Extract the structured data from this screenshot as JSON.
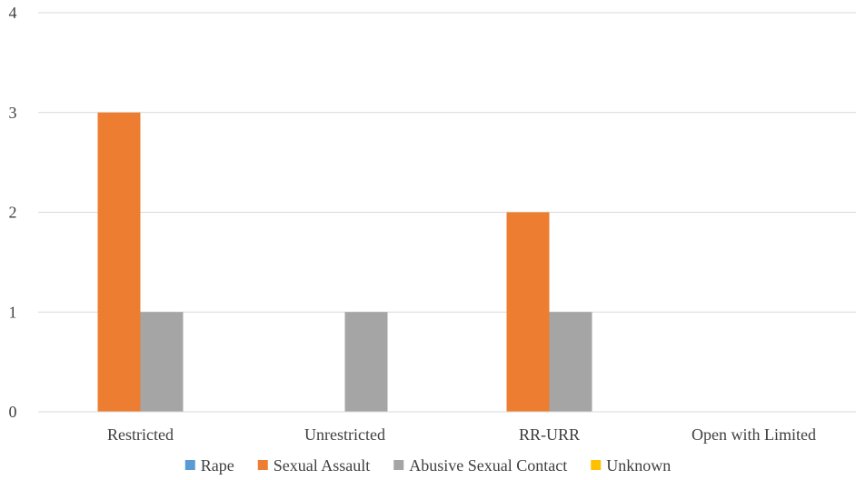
{
  "chart_data": {
    "type": "bar",
    "title": "",
    "xlabel": "",
    "ylabel": "",
    "categories": [
      "Restricted",
      "Unrestricted",
      "RR-URR",
      "Open with Limited"
    ],
    "series": [
      {
        "name": "Rape",
        "values": [
          0,
          0,
          0,
          0
        ],
        "color": "#5B9BD5"
      },
      {
        "name": "Sexual Assault",
        "values": [
          3,
          0,
          2,
          0
        ],
        "color": "#ED7D31"
      },
      {
        "name": "Abusive Sexual Contact",
        "values": [
          1,
          1,
          1,
          0
        ],
        "color": "#A5A5A5"
      },
      {
        "name": "Unknown",
        "values": [
          0,
          0,
          0,
          0
        ],
        "color": "#FFC000"
      }
    ],
    "ylim": [
      0,
      4
    ],
    "yticks": [
      "0",
      "1",
      "2",
      "3",
      "4"
    ],
    "grid": true,
    "legend_position": "bottom"
  }
}
